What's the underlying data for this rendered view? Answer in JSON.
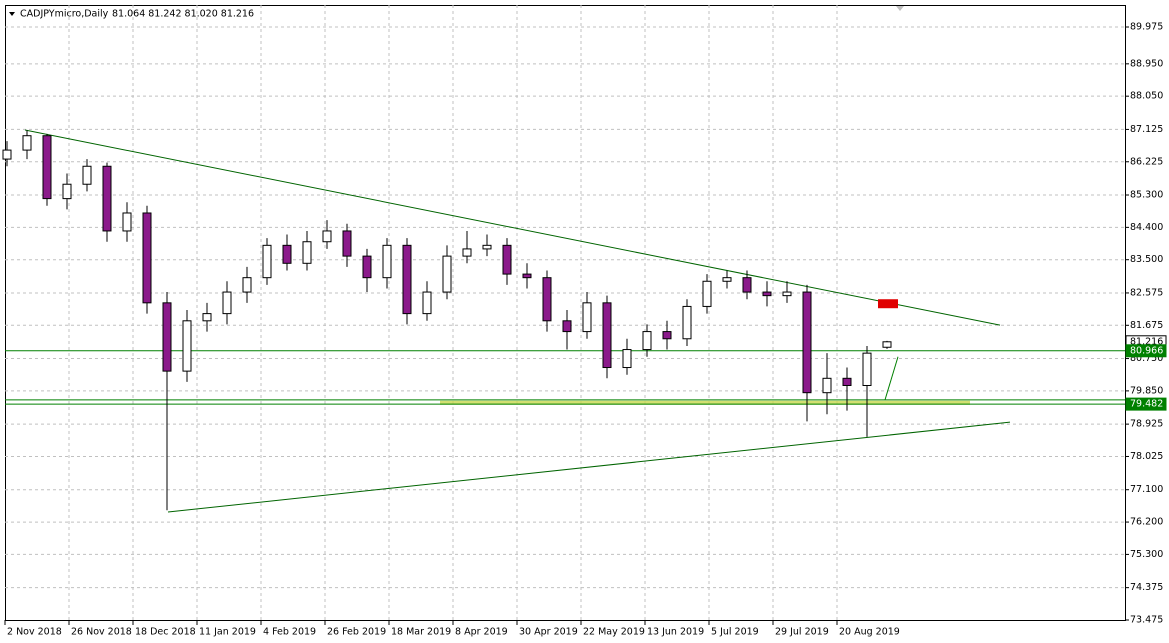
{
  "header": {
    "symbol": "CADJPYmicro,Daily",
    "quote": "81.064 81.242 81.020 81.216"
  },
  "chart_data": {
    "type": "candlestick",
    "x": [
      0.5,
      5.5,
      10.5,
      15.5,
      20.5,
      25.5,
      30.5,
      35.5,
      40.5,
      45.5,
      50.5,
      55.5,
      60.5,
      65.5,
      70.5,
      75.5,
      80.5,
      85.5,
      90.5,
      95.5,
      100.5,
      105.5,
      110.5,
      115.5,
      120.5,
      125.5,
      130.5,
      135.5,
      140.5,
      145.5,
      150.5,
      155.5,
      160.5,
      165.5,
      170.5,
      175.5,
      180.5,
      185.5,
      190.5,
      195.5,
      200.5,
      205.5,
      210.5,
      215.5,
      220.5
    ],
    "open": [
      86.3,
      86.55,
      86.95,
      85.2,
      85.6,
      86.1,
      84.3,
      84.8,
      82.3,
      80.4,
      81.8,
      82.0,
      82.6,
      83.0,
      83.9,
      83.4,
      84.0,
      84.3,
      83.6,
      83.0,
      83.9,
      82.0,
      82.6,
      83.6,
      83.8,
      83.9,
      83.1,
      83.0,
      81.8,
      81.5,
      82.3,
      80.5,
      81.0,
      81.5,
      81.3,
      82.2,
      82.9,
      83.0,
      82.6,
      82.5,
      82.6,
      79.8,
      80.2,
      80.0,
      81.064
    ],
    "high": [
      86.8,
      87.1,
      87.0,
      85.9,
      86.3,
      86.2,
      85.1,
      85.0,
      82.6,
      82.1,
      82.3,
      82.9,
      83.3,
      84.1,
      84.2,
      84.3,
      84.6,
      84.5,
      83.8,
      84.1,
      84.1,
      82.9,
      83.9,
      84.3,
      84.2,
      84.1,
      83.4,
      83.2,
      82.1,
      82.6,
      82.5,
      81.3,
      81.7,
      81.8,
      82.4,
      83.1,
      83.2,
      83.2,
      82.9,
      82.9,
      82.8,
      80.9,
      80.5,
      81.1,
      81.242
    ],
    "low": [
      86.1,
      86.3,
      85.0,
      84.9,
      85.4,
      84.0,
      84.0,
      82.0,
      76.53,
      80.1,
      81.5,
      81.7,
      82.3,
      82.8,
      83.2,
      83.2,
      83.8,
      83.3,
      82.6,
      82.7,
      81.7,
      81.8,
      82.4,
      83.4,
      83.6,
      82.8,
      82.7,
      81.5,
      81.0,
      81.3,
      80.2,
      80.3,
      80.8,
      81.0,
      81.1,
      82.0,
      82.7,
      82.4,
      82.2,
      82.3,
      79.0,
      79.2,
      79.3,
      78.57,
      81.02
    ],
    "close": [
      86.55,
      86.95,
      85.2,
      85.6,
      86.1,
      84.3,
      84.8,
      82.3,
      80.4,
      81.8,
      82.0,
      82.6,
      83.0,
      83.9,
      83.4,
      84.0,
      84.3,
      83.6,
      83.0,
      83.9,
      82.0,
      82.6,
      83.6,
      83.8,
      83.9,
      83.1,
      83.0,
      81.8,
      81.5,
      82.3,
      80.5,
      81.0,
      81.5,
      81.3,
      82.2,
      82.9,
      83.0,
      82.6,
      82.5,
      82.6,
      79.8,
      80.2,
      80.0,
      80.9,
      81.216
    ],
    "up_color": "#ffffff",
    "down_color": "#8b1a8b",
    "outline_color": "#000000",
    "xlim": [
      0,
      280
    ],
    "ylim": [
      73.475,
      90.587
    ],
    "xticks": [
      {
        "value": 0,
        "label": "2 Nov 2018"
      },
      {
        "value": 16,
        "label": "26 Nov 2018"
      },
      {
        "value": 32,
        "label": "18 Dec 2018"
      },
      {
        "value": 48,
        "label": "11 Jan 2019"
      },
      {
        "value": 64,
        "label": "4 Feb 2019"
      },
      {
        "value": 80,
        "label": "26 Feb 2019"
      },
      {
        "value": 96,
        "label": "18 Mar 2019"
      },
      {
        "value": 112,
        "label": "8 Apr 2019"
      },
      {
        "value": 128,
        "label": "30 Apr 2019"
      },
      {
        "value": 144,
        "label": "22 May 2019"
      },
      {
        "value": 160,
        "label": "13 Jun 2019"
      },
      {
        "value": 176,
        "label": "5 Jul 2019"
      },
      {
        "value": 192,
        "label": "29 Jul 2019"
      },
      {
        "value": 208,
        "label": "20 Aug 2019"
      }
    ],
    "yticks": [
      {
        "value": 89.975,
        "label": "89.975"
      },
      {
        "value": 88.95,
        "label": "88.950"
      },
      {
        "value": 88.05,
        "label": "88.050"
      },
      {
        "value": 87.125,
        "label": "87.125"
      },
      {
        "value": 86.225,
        "label": "86.225"
      },
      {
        "value": 85.3,
        "label": "85.300"
      },
      {
        "value": 84.4,
        "label": "84.400"
      },
      {
        "value": 83.5,
        "label": "83.500"
      },
      {
        "value": 82.575,
        "label": "82.575"
      },
      {
        "value": 81.675,
        "label": "81.675"
      },
      {
        "value": 80.75,
        "label": "80.750"
      },
      {
        "value": 79.85,
        "label": "79.850"
      },
      {
        "value": 78.925,
        "label": "78.925"
      },
      {
        "value": 78.025,
        "label": "78.025"
      },
      {
        "value": 77.1,
        "label": "77.100"
      },
      {
        "value": 76.2,
        "label": "76.200"
      },
      {
        "value": 75.3,
        "label": "75.300"
      },
      {
        "value": 74.375,
        "label": "74.375"
      },
      {
        "value": 73.475,
        "label": "73.475"
      }
    ],
    "grid": true,
    "grid_color": "#c0c0c0",
    "hlines": [
      {
        "value": 80.966,
        "color": "#008000"
      },
      {
        "value": 79.6,
        "color": "#008000"
      },
      {
        "value": 79.482,
        "color": "#008000"
      }
    ],
    "trendlines": [
      {
        "x": [
          5,
          248.75
        ],
        "y": [
          87.11,
          81.68
        ],
        "color": "#006400"
      },
      {
        "x": [
          40.75,
          251.25
        ],
        "y": [
          76.48,
          78.98
        ],
        "color": "#006400"
      },
      {
        "x": [
          220,
          223.25
        ],
        "y": [
          79.6,
          80.8
        ],
        "color": "#008000"
      }
    ],
    "band": {
      "x": [
        108.75,
        241.25
      ],
      "value": 79.52,
      "color": "#c8d850"
    },
    "box": {
      "x": [
        218.25,
        223.25
      ],
      "y": [
        82.15,
        82.4
      ],
      "color": "#e00000"
    },
    "price_labels": [
      {
        "value": 81.216,
        "label": "81.216",
        "bg": "#ffffff",
        "fg": "#000000"
      },
      {
        "value": 80.966,
        "label": "80.966",
        "bg": "#008000",
        "fg": "#ffffff"
      },
      {
        "value": 79.482,
        "label": "79.482",
        "bg": "#008000",
        "fg": "#ffffff"
      }
    ]
  }
}
